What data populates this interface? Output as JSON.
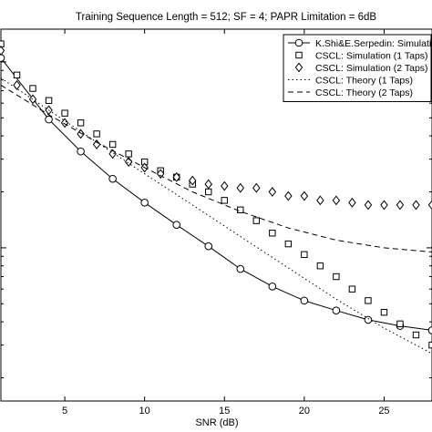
{
  "chart_data": {
    "type": "line",
    "title": "Training Sequence Length = 512; SF = 4; PAPR Limitation = 6dB",
    "xlabel": "SNR (dB)",
    "ylabel": "",
    "xlim": [
      1,
      28
    ],
    "x_ticks": [
      5,
      10,
      15,
      20,
      25
    ],
    "y_scale": "log",
    "ylim": [
      0.00015,
      0.015
    ],
    "grid": false,
    "legend_position": "top-right",
    "series": [
      {
        "name": "K.Shi&E.Serpedin: Simulation",
        "style": "solid-circle",
        "marker": "circle",
        "x": [
          1,
          4,
          6,
          8,
          10,
          12,
          14,
          16,
          18,
          20,
          22,
          24,
          26,
          28
        ],
        "y": [
          0.0105,
          0.0049,
          0.0033,
          0.00235,
          0.00175,
          0.00133,
          0.00102,
          0.00077,
          0.00062,
          0.00052,
          0.00046,
          0.00041,
          0.00038,
          0.00036
        ]
      },
      {
        "name": "CSCL: Simulation (1 Taps)",
        "marker": "square",
        "x": [
          1,
          2,
          3,
          4,
          5,
          6,
          7,
          8,
          9,
          10,
          11,
          12,
          13,
          14,
          15,
          16,
          17,
          18,
          19,
          20,
          21,
          22,
          23,
          24,
          25,
          26,
          27,
          28
        ],
        "y": [
          0.0125,
          0.0085,
          0.0072,
          0.0062,
          0.0053,
          0.0047,
          0.0041,
          0.0036,
          0.0032,
          0.0029,
          0.0026,
          0.0024,
          0.0022,
          0.002,
          0.0018,
          0.0016,
          0.0014,
          0.0012,
          0.00105,
          0.00092,
          0.0008,
          0.0007,
          0.0006,
          0.00052,
          0.00045,
          0.00039,
          0.00034,
          0.0003
        ]
      },
      {
        "name": "CSCL: Simulation (2 Taps)",
        "marker": "diamond",
        "x": [
          1,
          2,
          3,
          4,
          5,
          6,
          7,
          8,
          9,
          10,
          11,
          12,
          13,
          14,
          15,
          16,
          17,
          18,
          19,
          20,
          21,
          22,
          23,
          24,
          25,
          26,
          27,
          28
        ],
        "y": [
          0.0115,
          0.0075,
          0.0063,
          0.0055,
          0.0047,
          0.0041,
          0.0036,
          0.0032,
          0.0029,
          0.0027,
          0.0025,
          0.0024,
          0.0023,
          0.0022,
          0.00215,
          0.0021,
          0.0021,
          0.002,
          0.0019,
          0.0019,
          0.0018,
          0.0018,
          0.00175,
          0.0017,
          0.0017,
          0.0017,
          0.0017,
          0.0017
        ]
      },
      {
        "name": "CSCL: Theory (1 Taps)",
        "style": "dotted",
        "x": [
          1,
          4,
          7,
          10,
          13,
          16,
          19,
          22,
          25,
          28
        ],
        "y": [
          0.0082,
          0.0055,
          0.0037,
          0.0025,
          0.0017,
          0.00115,
          0.00078,
          0.00053,
          0.00037,
          0.00027
        ]
      },
      {
        "name": "CSCL: Theory (2 Taps)",
        "style": "dashed",
        "x": [
          1,
          4,
          7,
          10,
          13,
          16,
          19,
          22,
          25,
          28
        ],
        "y": [
          0.0075,
          0.0052,
          0.0037,
          0.0027,
          0.002,
          0.00157,
          0.00128,
          0.0011,
          0.001,
          0.00095
        ]
      }
    ]
  }
}
